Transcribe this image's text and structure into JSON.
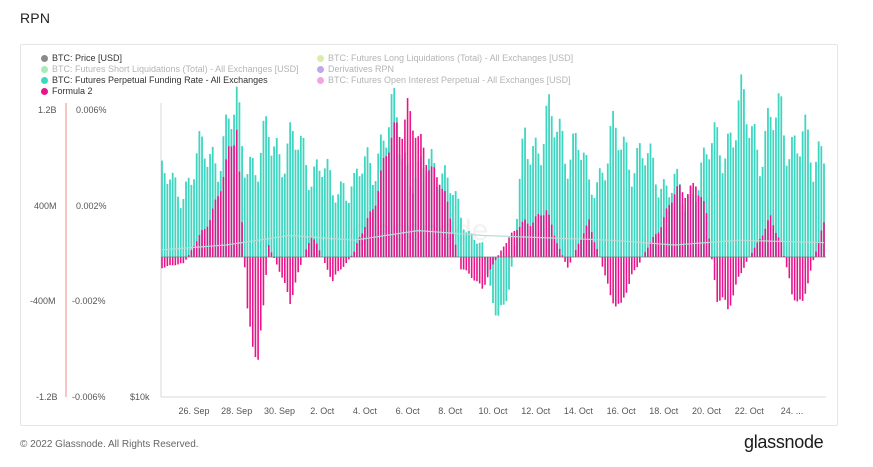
{
  "page": {
    "title": "RPN"
  },
  "footer": {
    "copyright": "© 2022 Glassnode. All Rights Reserved.",
    "brand": "glassnode"
  },
  "colors": {
    "teal": "#3fd6c1",
    "magenta": "#e7158c",
    "grey": "#8a8a8a",
    "lime": "#b8dc55",
    "green": "#4fd873",
    "purple": "#7f4fd8",
    "pink": "#e54bc3",
    "red_axis": "#f08a8a",
    "price_line": "#b7dcd4"
  },
  "legend": [
    {
      "label": "BTC: Price [USD]",
      "color": "#8a8a8a",
      "faded": false
    },
    {
      "label": "BTC: Futures Long Liquidations (Total) - All Exchanges [USD]",
      "color": "#b8dc55",
      "faded": true
    },
    {
      "label": "BTC: Futures Short Liquidations (Total) - All Exchanges [USD]",
      "color": "#4fd873",
      "faded": true
    },
    {
      "label": "Derivatives RPN",
      "color": "#7f4fd8",
      "faded": true
    },
    {
      "label": "BTC: Futures Perpetual Funding Rate - All Exchanges",
      "color": "#3fd6c1",
      "faded": false
    },
    {
      "label": "BTC: Futures Open Interest Perpetual - All Exchanges [USD]",
      "color": "#e54bc3",
      "faded": true
    },
    {
      "label": "Formula 2",
      "color": "#e7158c",
      "faded": false
    }
  ],
  "chart_data": {
    "type": "bar",
    "title": "RPN",
    "x_tick_labels": [
      "26. Sep",
      "28. Sep",
      "30. Sep",
      "2. Oct",
      "4. Oct",
      "6. Oct",
      "8. Oct",
      "10. Oct",
      "12. Oct",
      "14. Oct",
      "16. Oct",
      "18. Oct",
      "20. Oct",
      "22. Oct",
      "24. ..."
    ],
    "y_left_outer": {
      "ticks": [
        "1.2B",
        "400M",
        "-400M",
        "-1.2B"
      ],
      "values": [
        1200000000,
        400000000,
        -400000000,
        -1200000000
      ]
    },
    "y_left_inner": {
      "ticks": [
        "0.006%",
        "0.002%",
        "-0.002%",
        "-0.006%"
      ],
      "values": [
        0.006,
        0.002,
        -0.002,
        -0.006
      ]
    },
    "price_axis_label": "$10k",
    "x_range_days": [
      0,
      31
    ],
    "series": [
      {
        "name": "BTC: Futures Perpetual Funding Rate - All Exchanges",
        "unit": "%",
        "type": "bar",
        "anchors": [
          [
            0,
            0.0033
          ],
          [
            0.5,
            0.0028
          ],
          [
            1,
            0.003
          ],
          [
            2,
            0.0042
          ],
          [
            3,
            0.0048
          ],
          [
            3.5,
            0.0058
          ],
          [
            4,
            0.0045
          ],
          [
            4.5,
            0.0035
          ],
          [
            5,
            0.005
          ],
          [
            6,
            0.0045
          ],
          [
            7,
            0.004
          ],
          [
            7.5,
            0.0037
          ],
          [
            8,
            0.0025
          ],
          [
            8.5,
            0.0033
          ],
          [
            9,
            0.0028
          ],
          [
            10,
            0.0045
          ],
          [
            11,
            0.0055
          ],
          [
            11.5,
            0.004
          ],
          [
            12,
            0.0032
          ],
          [
            13,
            0.0042
          ],
          [
            14,
            0.0015
          ],
          [
            15,
            0.0005
          ],
          [
            15.5,
            -0.0018
          ],
          [
            16,
            -0.003
          ],
          [
            16.5,
            0.0005
          ],
          [
            17,
            0.0048
          ],
          [
            18,
            0.0052
          ],
          [
            19,
            0.005
          ],
          [
            19.5,
            0.0045
          ],
          [
            20,
            0.0028
          ],
          [
            21,
            0.0046
          ],
          [
            22,
            0.0045
          ],
          [
            23,
            0.0035
          ],
          [
            24,
            0.003
          ],
          [
            24.5,
            0.002
          ],
          [
            25,
            0.0035
          ],
          [
            26,
            0.0045
          ],
          [
            26.5,
            0.0052
          ],
          [
            27,
            0.0058
          ],
          [
            28,
            0.005
          ],
          [
            29,
            0.0055
          ],
          [
            30,
            0.0048
          ],
          [
            30.5,
            0.0035
          ],
          [
            31,
            0.0056
          ]
        ]
      },
      {
        "name": "Formula 2",
        "type": "bar",
        "anchors": [
          [
            0,
            -0.0004
          ],
          [
            1,
            -0.0003
          ],
          [
            2,
            0.0012
          ],
          [
            3,
            0.0035
          ],
          [
            3.5,
            0.0055
          ],
          [
            4,
            -0.0025
          ],
          [
            4.5,
            -0.0042
          ],
          [
            5,
            0.0005
          ],
          [
            6,
            -0.0017
          ],
          [
            7,
            0.001
          ],
          [
            8,
            -0.001
          ],
          [
            9,
            0.0002
          ],
          [
            10,
            0.0025
          ],
          [
            11,
            0.0055
          ],
          [
            11.5,
            0.0064
          ],
          [
            12,
            0.0045
          ],
          [
            13,
            0.0035
          ],
          [
            14,
            -0.0005
          ],
          [
            15,
            -0.0012
          ],
          [
            16,
            0.0005
          ],
          [
            17,
            0.0015
          ],
          [
            18,
            0.0018
          ],
          [
            19,
            -0.0005
          ],
          [
            20,
            0.0015
          ],
          [
            21,
            -0.0015
          ],
          [
            21.5,
            -0.0022
          ],
          [
            22,
            -0.0008
          ],
          [
            23,
            0.0008
          ],
          [
            24,
            0.0025
          ],
          [
            25,
            0.0032
          ],
          [
            25.5,
            0.0016
          ],
          [
            26,
            -0.0018
          ],
          [
            26.5,
            -0.0022
          ],
          [
            27,
            -0.0008
          ],
          [
            28,
            0.0008
          ],
          [
            28.5,
            0.0015
          ],
          [
            29,
            0.0006
          ],
          [
            29.5,
            -0.0016
          ],
          [
            30,
            -0.0018
          ],
          [
            31,
            0.0015
          ]
        ]
      },
      {
        "name": "BTC: Price [USD]",
        "type": "line",
        "anchors": [
          [
            0,
            0.0003
          ],
          [
            3,
            0.0005
          ],
          [
            6,
            0.0009
          ],
          [
            9,
            0.0007
          ],
          [
            12,
            0.0011
          ],
          [
            15,
            0.0009
          ],
          [
            18,
            0.0008
          ],
          [
            21,
            0.0007
          ],
          [
            24,
            0.0005
          ],
          [
            27,
            0.0007
          ],
          [
            31,
            0.0006
          ]
        ]
      }
    ]
  }
}
